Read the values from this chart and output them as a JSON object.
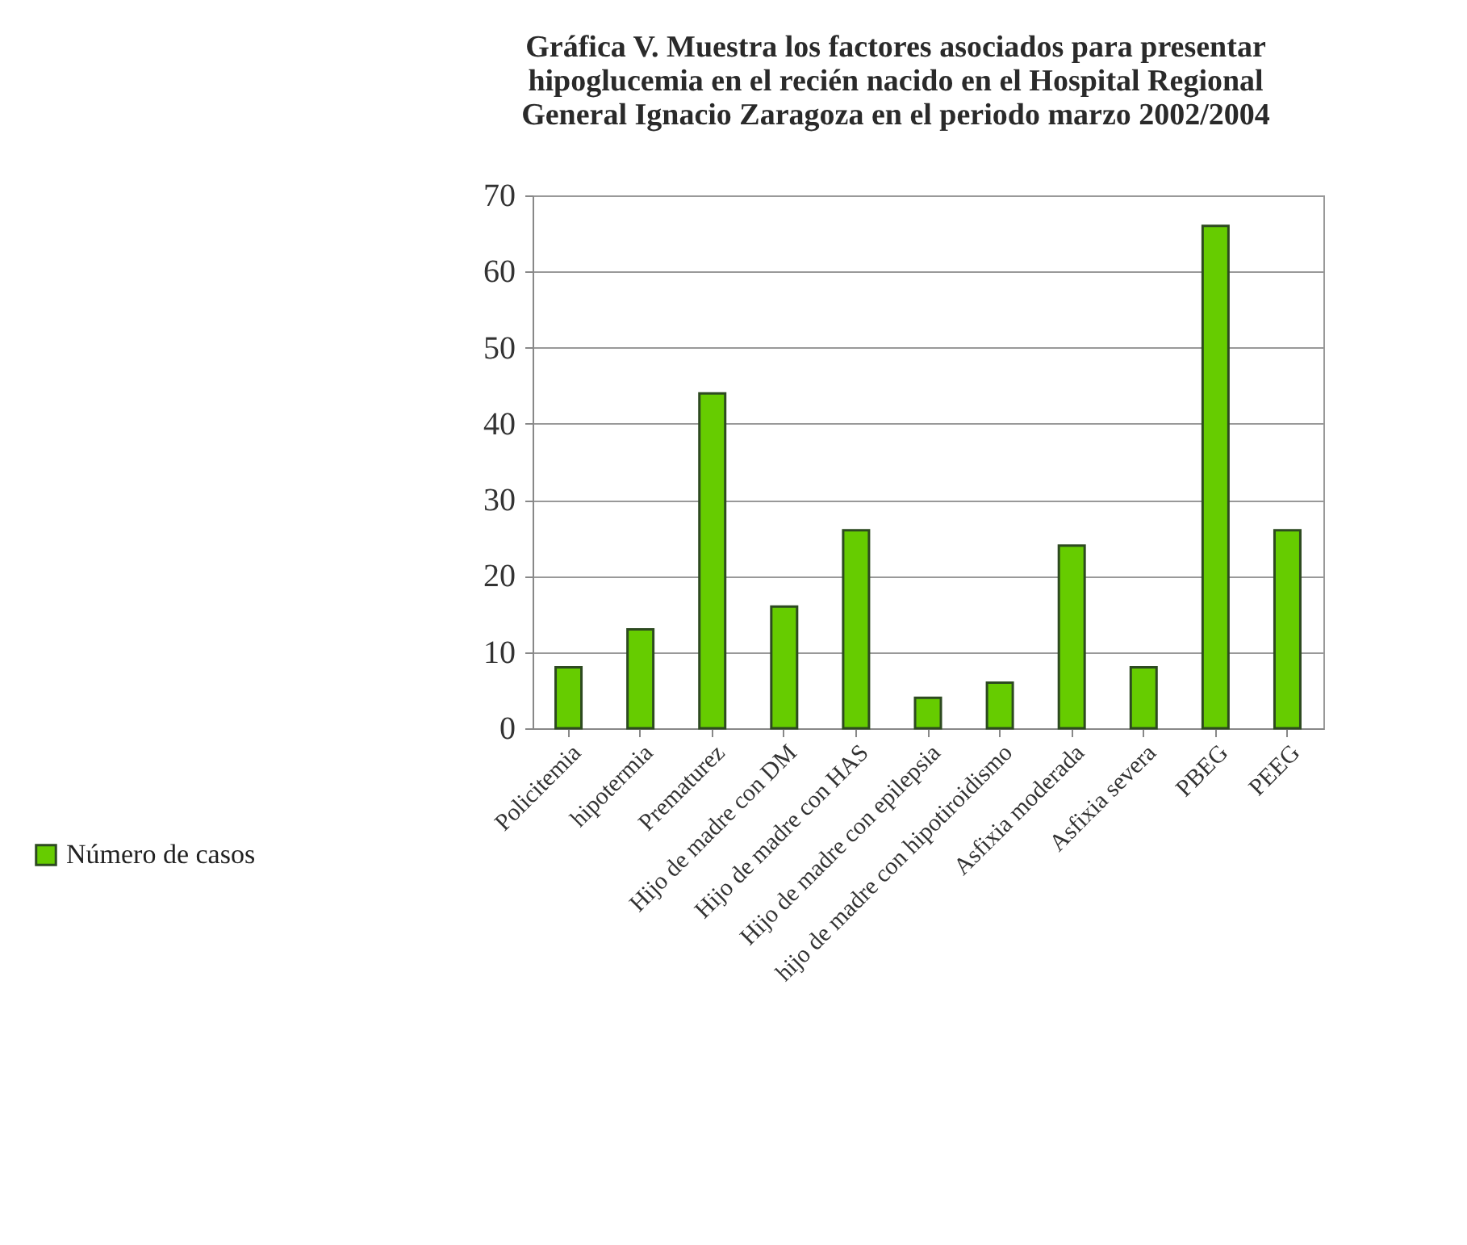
{
  "chart_data": {
    "type": "bar",
    "title": "Gráfica V. Muestra los factores asociados para presentar hipoglucemia en el recién nacido en el Hospital Regional General Ignacio Zaragoza en el periodo marzo 2002/2004",
    "categories": [
      "Policitemia",
      "hipotermia",
      "Prematurez",
      "Hijo de madre con DM",
      "Hijo de madre con HAS",
      "Hijo de madre con epilepsia",
      "hijo de madre con hipotiroidismo",
      "Asfixia moderada",
      "Asfixia severa",
      "PBEG",
      "PEEG"
    ],
    "series": [
      {
        "name": "Número de casos",
        "color": "#66cc00",
        "values": [
          8,
          13,
          44,
          16,
          26,
          4,
          6,
          24,
          8,
          66,
          26
        ]
      }
    ],
    "ylim": [
      0,
      70
    ],
    "yticks": [
      0,
      10,
      20,
      30,
      40,
      50,
      60,
      70
    ],
    "grid": "y",
    "legend": "bottom left"
  }
}
